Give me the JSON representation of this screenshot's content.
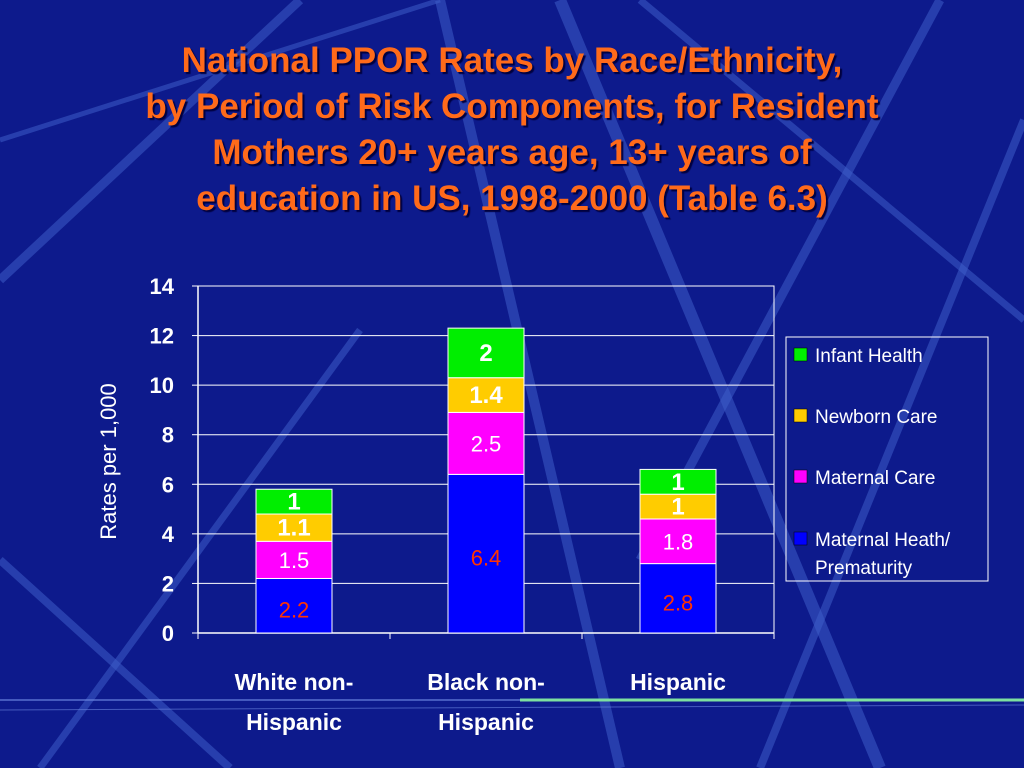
{
  "slide": {
    "title_lines": [
      "National PPOR Rates by Race/Ethnicity,",
      "by Period of Risk Components, for Resident",
      "Mothers 20+ years age, 13+ years of",
      "education in US, 1998-2000 (Table 6.3)"
    ]
  },
  "colors": {
    "background": "#0d1a8c",
    "title": "#ff6a1a",
    "axis_text": "#ffffff",
    "infant_health": "#00ee00",
    "newborn_care": "#ffcc00",
    "maternal_care": "#ff00ff",
    "maternal_health": "#0000ff",
    "maternal_health_label": "#ff3300"
  },
  "chart_data": {
    "type": "bar",
    "stacked": true,
    "title": "",
    "xlabel": "",
    "ylabel": "Rates per 1,000",
    "ylim": [
      0,
      14
    ],
    "yticks": [
      "0",
      "2",
      "4",
      "6",
      "8",
      "10",
      "12",
      "14"
    ],
    "grid": true,
    "legend_position": "right",
    "categories": [
      [
        "White non-",
        "Hispanic"
      ],
      [
        "Black non-",
        "Hispanic"
      ],
      [
        "Hispanic"
      ]
    ],
    "series": [
      {
        "name": "Maternal Heath/ Prematurity",
        "legend_lines": [
          "Maternal Heath/",
          "Prematurity"
        ],
        "color": "#0000ff",
        "values": [
          2.2,
          6.4,
          2.8
        ],
        "labels": [
          "2.2",
          "6.4",
          "2.8"
        ],
        "label_color": "#ff3300"
      },
      {
        "name": "Maternal Care",
        "legend_lines": [
          "Maternal Care"
        ],
        "color": "#ff00ff",
        "values": [
          1.5,
          2.5,
          1.8
        ],
        "labels": [
          "1.5",
          "2.5",
          "1.8"
        ],
        "label_color": "#ffffff"
      },
      {
        "name": "Newborn Care",
        "legend_lines": [
          "Newborn Care"
        ],
        "color": "#ffcc00",
        "values": [
          1.1,
          1.4,
          1
        ],
        "labels": [
          "1.1",
          "1.4",
          "1"
        ],
        "label_color": "#ffffff"
      },
      {
        "name": "Infant Health",
        "legend_lines": [
          "Infant Health"
        ],
        "color": "#00ee00",
        "values": [
          1,
          2,
          1
        ],
        "labels": [
          "1",
          "2",
          "1"
        ],
        "label_color": "#ffffff"
      }
    ]
  }
}
